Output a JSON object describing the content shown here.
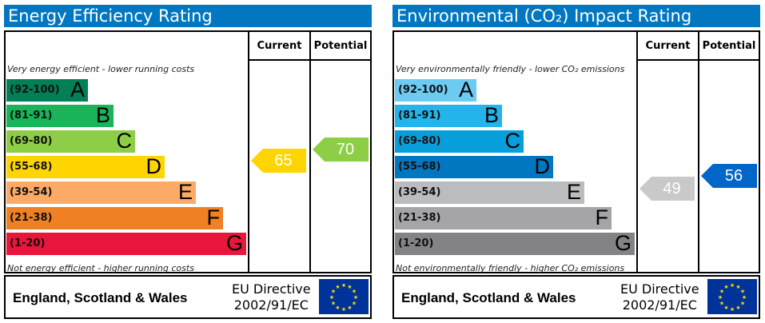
{
  "charts": [
    {
      "id": "energy",
      "title": "Energy Efficiency Rating",
      "col_current": "Current",
      "col_potential": "Potential",
      "top_note": "Very energy efficient - lower running costs",
      "bottom_note": "Not energy efficient - higher running costs",
      "bands": [
        {
          "range": "(92-100)",
          "letter": "A",
          "color": "#008054",
          "text": "#111"
        },
        {
          "range": "(81-91)",
          "letter": "B",
          "color": "#19b459",
          "text": "#111"
        },
        {
          "range": "(69-80)",
          "letter": "C",
          "color": "#8dce46",
          "text": "#111"
        },
        {
          "range": "(55-68)",
          "letter": "D",
          "color": "#ffd500",
          "text": "#111"
        },
        {
          "range": "(39-54)",
          "letter": "E",
          "color": "#fcaa65",
          "text": "#111"
        },
        {
          "range": "(21-38)",
          "letter": "F",
          "color": "#ef8023",
          "text": "#111"
        },
        {
          "range": "(1-20)",
          "letter": "G",
          "color": "#e9153b",
          "text": "#111"
        }
      ],
      "current": {
        "value": "65",
        "color": "#ffd500"
      },
      "potential": {
        "value": "70",
        "color": "#8dce46"
      },
      "footer": {
        "country": "England, Scotland & Wales",
        "directive_line1": "EU Directive",
        "directive_line2": "2002/91/EC"
      }
    },
    {
      "id": "environmental",
      "title": "Environmental (CO₂) Impact Rating",
      "col_current": "Current",
      "col_potential": "Potential",
      "top_note": "Very environmentally friendly - lower CO₂ emissions",
      "bottom_note": "Not environmentally friendly - higher CO₂ emissions",
      "bands": [
        {
          "range": "(92-100)",
          "letter": "A",
          "color": "#6ccbf3"
        },
        {
          "range": "(81-91)",
          "letter": "B",
          "color": "#22b4eb"
        },
        {
          "range": "(69-80)",
          "letter": "C",
          "color": "#069fdb"
        },
        {
          "range": "(55-68)",
          "letter": "D",
          "color": "#0077c0"
        },
        {
          "range": "(39-54)",
          "letter": "E",
          "color": "#bbbcbe"
        },
        {
          "range": "(21-38)",
          "letter": "F",
          "color": "#a5a5a8"
        },
        {
          "range": "(1-20)",
          "letter": "G",
          "color": "#838386"
        }
      ],
      "current": {
        "value": "49",
        "color": "#c9c9c9"
      },
      "potential": {
        "value": "56",
        "color": "#0066c8"
      },
      "footer": {
        "country": "England, Scotland & Wales",
        "directive_line1": "EU Directive",
        "directive_line2": "2002/91/EC"
      }
    }
  ]
}
